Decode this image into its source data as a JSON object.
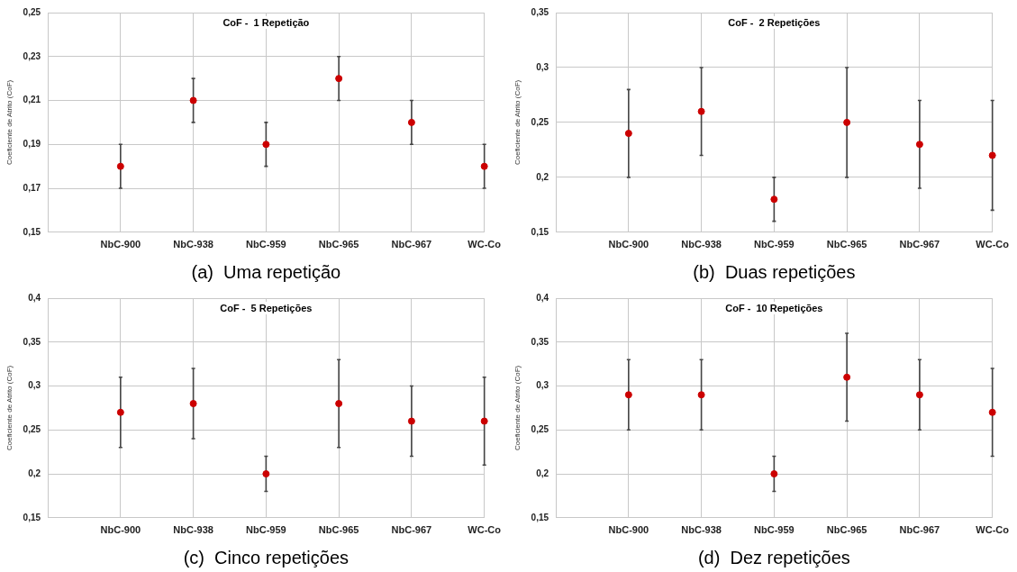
{
  "chart_data": [
    {
      "type": "scatter",
      "title": "CoF -  1 Repetição",
      "ylabel": "Coeficiente de Atrito (CoF)",
      "categories": [
        null,
        "NbC-900",
        "NbC-938",
        "NbC-959",
        "NbC-965",
        "NbC-967",
        "WC-Co"
      ],
      "series": [
        {
          "color": "#cc0000",
          "values": [
            null,
            0.18,
            0.21,
            0.19,
            0.22,
            0.2,
            0.18
          ],
          "errors": [
            null,
            0.01,
            0.01,
            0.01,
            0.01,
            0.01,
            0.01
          ]
        }
      ],
      "ylim": [
        0.15,
        0.25
      ],
      "yticks": [
        {
          "value": 0.15,
          "label": "0,15"
        },
        {
          "value": 0.17,
          "label": "0,17"
        },
        {
          "value": 0.19,
          "label": "0,19"
        },
        {
          "value": 0.21,
          "label": "0,21"
        },
        {
          "value": 0.23,
          "label": "0,23"
        },
        {
          "value": 0.25,
          "label": "0,25"
        }
      ],
      "grid": true,
      "marker": "circle",
      "annotations": [
        "(a)  Uma repetição"
      ]
    },
    {
      "type": "scatter",
      "title": "CoF -  2 Repetições",
      "ylabel": "Coeficiente de Atrito (CoF)",
      "categories": [
        null,
        "NbC-900",
        "NbC-938",
        "NbC-959",
        "NbC-965",
        "NbC-967",
        "WC-Co"
      ],
      "series": [
        {
          "color": "#cc0000",
          "values": [
            null,
            0.24,
            0.26,
            0.18,
            0.25,
            0.23,
            0.22
          ],
          "errors": [
            null,
            0.04,
            0.04,
            0.02,
            0.05,
            0.04,
            0.05
          ]
        }
      ],
      "ylim": [
        0.15,
        0.35
      ],
      "yticks": [
        {
          "value": 0.15,
          "label": "0,15"
        },
        {
          "value": 0.2,
          "label": "0,2"
        },
        {
          "value": 0.25,
          "label": "0,25"
        },
        {
          "value": 0.3,
          "label": "0,3"
        },
        {
          "value": 0.35,
          "label": "0,35"
        }
      ],
      "grid": true,
      "marker": "circle",
      "annotations": [
        "(b)  Duas repetições"
      ]
    },
    {
      "type": "scatter",
      "title": "CoF -  5 Repetições",
      "ylabel": "Coeficiente de Atrito (CoF)",
      "categories": [
        null,
        "NbC-900",
        "NbC-938",
        "NbC-959",
        "NbC-965",
        "NbC-967",
        "WC-Co"
      ],
      "series": [
        {
          "color": "#cc0000",
          "values": [
            null,
            0.27,
            0.28,
            0.2,
            0.28,
            0.26,
            0.26
          ],
          "errors": [
            null,
            0.04,
            0.04,
            0.02,
            0.05,
            0.04,
            0.05
          ]
        }
      ],
      "ylim": [
        0.15,
        0.4
      ],
      "yticks": [
        {
          "value": 0.15,
          "label": "0,15"
        },
        {
          "value": 0.2,
          "label": "0,2"
        },
        {
          "value": 0.25,
          "label": "0,25"
        },
        {
          "value": 0.3,
          "label": "0,3"
        },
        {
          "value": 0.35,
          "label": "0,35"
        },
        {
          "value": 0.4,
          "label": "0,4"
        }
      ],
      "grid": true,
      "marker": "circle",
      "annotations": [
        "(c)  Cinco repetições"
      ]
    },
    {
      "type": "scatter",
      "title": "CoF -  10 Repetições",
      "ylabel": "Coeficiente de Atrito (CoF)",
      "categories": [
        null,
        "NbC-900",
        "NbC-938",
        "NbC-959",
        "NbC-965",
        "NbC-967",
        "WC-Co"
      ],
      "series": [
        {
          "color": "#cc0000",
          "values": [
            null,
            0.29,
            0.29,
            0.2,
            0.31,
            0.29,
            0.27
          ],
          "errors": [
            null,
            0.04,
            0.04,
            0.02,
            0.05,
            0.04,
            0.05
          ]
        }
      ],
      "ylim": [
        0.15,
        0.4
      ],
      "yticks": [
        {
          "value": 0.15,
          "label": "0,15"
        },
        {
          "value": 0.2,
          "label": "0,2"
        },
        {
          "value": 0.25,
          "label": "0,25"
        },
        {
          "value": 0.3,
          "label": "0,3"
        },
        {
          "value": 0.35,
          "label": "0,35"
        },
        {
          "value": 0.4,
          "label": "0,4"
        }
      ],
      "grid": true,
      "marker": "circle",
      "annotations": [
        "(d)  Dez repetições"
      ]
    }
  ]
}
